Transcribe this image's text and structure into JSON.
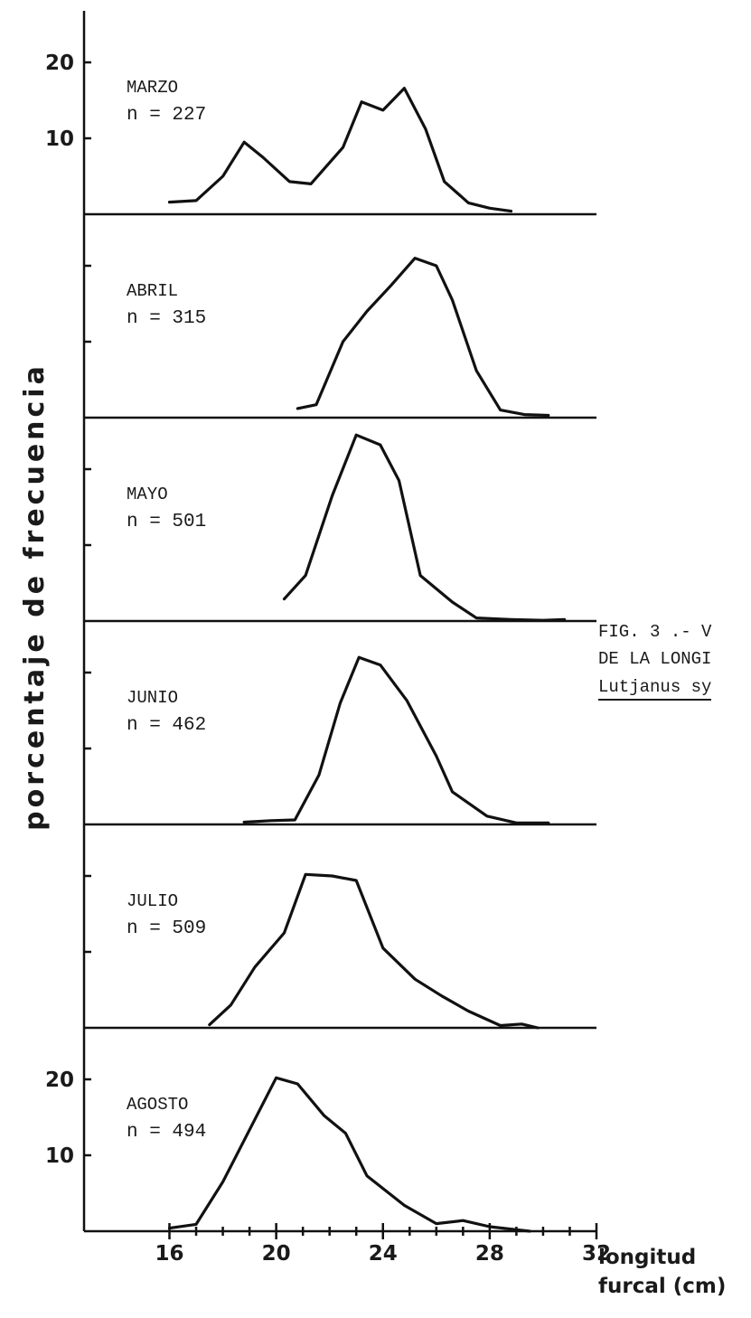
{
  "caption": {
    "line1": "FIG. 3 .- V",
    "line2": "DE LA LONGI",
    "line3": "Lutjanus sy"
  },
  "chart_data": {
    "type": "line",
    "ylabel": "porcentaje de frecuencia",
    "xlabel": "longitud furcal (cm)",
    "xlabel_line1": "longitud",
    "xlabel_line2": "furcal (cm)",
    "x_ticks": [
      "16",
      "20",
      "24",
      "28",
      "32"
    ],
    "y_ticks": [
      "10",
      "20"
    ],
    "xlim": [
      12.8,
      32
    ],
    "ylim": [
      0,
      20
    ],
    "line_color": "#111111",
    "panels": [
      {
        "label": "MARZO",
        "n": "n = 227",
        "points": [
          [
            16,
            1.6
          ],
          [
            17,
            1.8
          ],
          [
            18,
            5
          ],
          [
            18.8,
            9.5
          ],
          [
            19.5,
            7.5
          ],
          [
            20.5,
            4.3
          ],
          [
            21.3,
            4
          ],
          [
            22.5,
            8.8
          ],
          [
            23.2,
            14.8
          ],
          [
            24,
            13.7
          ],
          [
            24.8,
            16.6
          ],
          [
            25.6,
            11.2
          ],
          [
            26.3,
            4.3
          ],
          [
            27.2,
            1.5
          ],
          [
            28,
            0.8
          ],
          [
            28.8,
            0.4
          ]
        ]
      },
      {
        "label": "ABRIL",
        "n": "n = 315",
        "points": [
          [
            20.8,
            1.2
          ],
          [
            21.5,
            1.7
          ],
          [
            22.5,
            10
          ],
          [
            23.4,
            14
          ],
          [
            24.3,
            17.4
          ],
          [
            25.2,
            21
          ],
          [
            26,
            20
          ],
          [
            26.6,
            15.5
          ],
          [
            27.5,
            6.2
          ],
          [
            28.4,
            1
          ],
          [
            29.3,
            0.4
          ],
          [
            30.2,
            0.3
          ]
        ]
      },
      {
        "label": "MAYO",
        "n": "n = 501",
        "points": [
          [
            20.3,
            2.9
          ],
          [
            21.1,
            6
          ],
          [
            22.1,
            16.5
          ],
          [
            23,
            24.5
          ],
          [
            23.9,
            23.2
          ],
          [
            24.6,
            18.5
          ],
          [
            25.4,
            6
          ],
          [
            26.6,
            2.5
          ],
          [
            27.5,
            0.4
          ],
          [
            28.8,
            0.2
          ],
          [
            30,
            0.1
          ],
          [
            30.8,
            0.2
          ]
        ]
      },
      {
        "label": "JUNIO",
        "n": "n = 462",
        "points": [
          [
            18.8,
            0.3
          ],
          [
            19.8,
            0.5
          ],
          [
            20.7,
            0.6
          ],
          [
            21.6,
            6.5
          ],
          [
            22.4,
            16
          ],
          [
            23.1,
            22
          ],
          [
            23.9,
            21
          ],
          [
            24.9,
            16.3
          ],
          [
            26,
            9
          ],
          [
            26.6,
            4.3
          ],
          [
            27.9,
            1.1
          ],
          [
            29,
            0.2
          ],
          [
            30.2,
            0.2
          ]
        ]
      },
      {
        "label": "JULIO",
        "n": "n = 509",
        "points": [
          [
            17.5,
            0.4
          ],
          [
            18.3,
            3
          ],
          [
            19.2,
            8
          ],
          [
            20.3,
            12.5
          ],
          [
            21.1,
            20.2
          ],
          [
            22.1,
            20
          ],
          [
            23,
            19.4
          ],
          [
            24,
            10.5
          ],
          [
            25.2,
            6.4
          ],
          [
            26.2,
            4.2
          ],
          [
            27.2,
            2.2
          ],
          [
            28.4,
            0.3
          ],
          [
            29.2,
            0.5
          ],
          [
            29.8,
            0
          ]
        ]
      },
      {
        "label": "AGOSTO",
        "n": "n = 494",
        "points": [
          [
            16,
            0.4
          ],
          [
            17,
            0.9
          ],
          [
            18,
            6.5
          ],
          [
            20,
            20.2
          ],
          [
            20.8,
            19.4
          ],
          [
            21.8,
            15.2
          ],
          [
            22.6,
            12.9
          ],
          [
            23.4,
            7.3
          ],
          [
            24.8,
            3.4
          ],
          [
            26,
            1
          ],
          [
            27,
            1.4
          ],
          [
            28,
            0.6
          ],
          [
            29,
            0.2
          ],
          [
            29.5,
            0
          ]
        ]
      }
    ]
  }
}
